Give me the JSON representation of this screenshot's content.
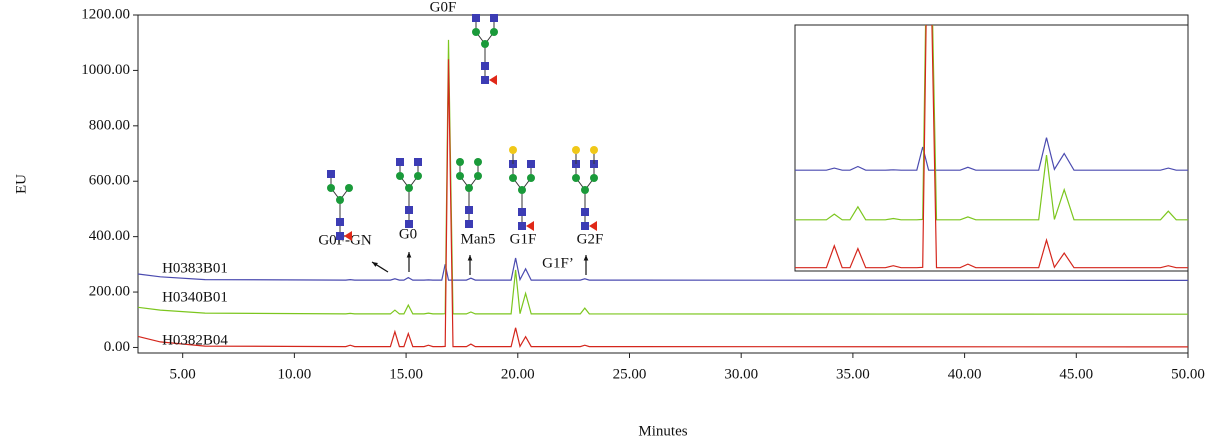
{
  "chart_data": {
    "type": "line",
    "ylabel": "EU",
    "xlabel": "Minutes",
    "x": [
      3,
      4,
      6,
      12.3,
      12.5,
      12.7,
      14.3,
      14.5,
      14.7,
      14.9,
      15.1,
      15.3,
      15.8,
      16.0,
      16.2,
      16.6,
      16.75,
      16.9,
      17.1,
      17.7,
      17.9,
      18.1,
      19.7,
      19.9,
      20.1,
      20.35,
      20.6,
      22.8,
      23.0,
      23.2,
      50
    ],
    "series": [
      {
        "name": "H0383B01",
        "color": "#4b4bb0",
        "values": [
          265,
          255,
          245,
          243,
          245,
          243,
          243,
          248,
          243,
          243,
          252,
          243,
          243,
          244,
          243,
          243,
          300,
          243,
          243,
          243,
          250,
          243,
          243,
          323,
          245,
          284,
          243,
          243,
          248,
          243,
          242
        ]
      },
      {
        "name": "H0340B01",
        "color": "#7cc61e",
        "values": [
          145,
          135,
          124,
          121,
          123,
          121,
          121,
          135,
          121,
          121,
          153,
          121,
          121,
          124,
          121,
          121,
          122,
          1110,
          121,
          121,
          128,
          121,
          121,
          280,
          122,
          195,
          121,
          121,
          142,
          121,
          120
        ]
      },
      {
        "name": "H0382B04",
        "color": "#d4261c",
        "values": [
          40,
          20,
          5,
          3,
          8,
          3,
          3,
          57,
          3,
          3,
          50,
          3,
          3,
          8,
          3,
          3,
          4,
          1040,
          3,
          3,
          12,
          3,
          3,
          71,
          4,
          39,
          3,
          3,
          8,
          3,
          2
        ]
      }
    ],
    "annotations": [
      "G0F-GN",
      "G0",
      "G0F",
      "Man5",
      "G1F",
      "G1F’",
      "G2F"
    ],
    "xlim": [
      3,
      50
    ],
    "xticks": [
      {
        "value": 5,
        "label": "5.00"
      },
      {
        "value": 10,
        "label": "10.00"
      },
      {
        "value": 15,
        "label": "15.00"
      },
      {
        "value": 20,
        "label": "20.00"
      },
      {
        "value": 25,
        "label": "25.00"
      },
      {
        "value": 30,
        "label": "30.00"
      },
      {
        "value": 35,
        "label": "35.00"
      },
      {
        "value": 40,
        "label": "40.00"
      },
      {
        "value": 45,
        "label": "45.00"
      },
      {
        "value": 50,
        "label": "50.00"
      }
    ],
    "ylim": [
      -20,
      1200
    ],
    "yticks": [
      {
        "value": 0,
        "label": "0.00"
      },
      {
        "value": 200,
        "label": "200.00"
      },
      {
        "value": 400,
        "label": "400.00"
      },
      {
        "value": 600,
        "label": "600.00"
      },
      {
        "value": 800,
        "label": "800.00"
      },
      {
        "value": 1000,
        "label": "1000.00"
      },
      {
        "value": 1200,
        "label": "1200.00"
      }
    ],
    "inset": {
      "xlim": [
        13.5,
        23.5
      ],
      "ylim": [
        -5,
        600
      ]
    }
  }
}
